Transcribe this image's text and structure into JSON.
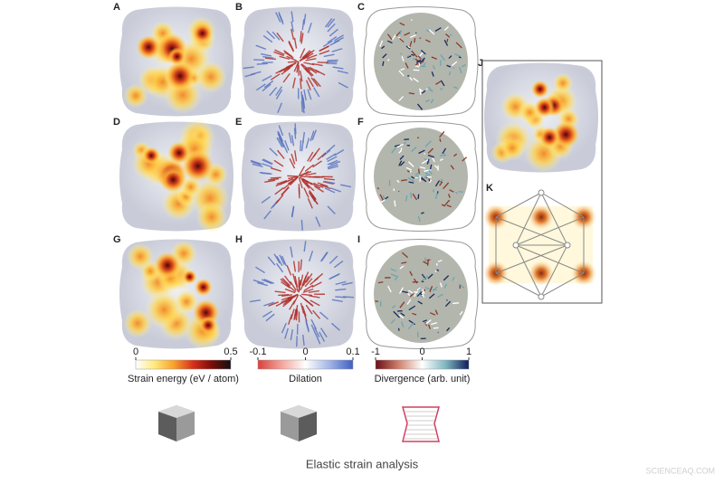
{
  "panels": [
    "A",
    "B",
    "C",
    "D",
    "E",
    "F",
    "G",
    "H",
    "I",
    "J",
    "K"
  ],
  "colorbars": [
    {
      "title": "Strain energy (eV / atom)",
      "lim": [
        0,
        0.5
      ],
      "ticks": [
        0,
        0.5
      ],
      "colors": [
        "#ffffff",
        "#ffe97a",
        "#f9a12b",
        "#d8301c",
        "#7a0c06",
        "#111111"
      ]
    },
    {
      "title": "Dilation",
      "lim": [
        -0.1,
        0.1
      ],
      "ticks": [
        -0.1,
        0,
        0.1
      ],
      "colors": [
        "#d9403a",
        "#f3a59c",
        "#ffffff",
        "#a3b6e6",
        "#3d5fc4"
      ]
    },
    {
      "title": "Divergence (arb. unit)",
      "lim": [
        -1,
        1
      ],
      "ticks": [
        -1,
        0,
        1
      ],
      "colors": [
        "#6b0d14",
        "#d1826d",
        "#ffffff",
        "#7fb7c0",
        "#0f1d5a"
      ]
    }
  ],
  "caption": "Elastic strain analysis",
  "watermark": "SCIENCEAQ.COM"
}
